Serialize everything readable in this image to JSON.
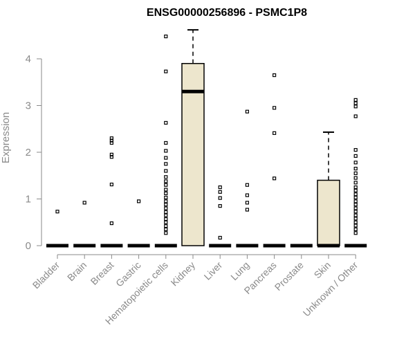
{
  "chart_data": {
    "type": "box",
    "title": "ENSG00000256896 - PSMC1P8",
    "xlabel": "",
    "ylabel": "Expression",
    "ylim": [
      0,
      4.6
    ],
    "yticks": [
      0,
      1,
      2,
      3,
      4
    ],
    "categories": [
      "Bladder",
      "Brain",
      "Breast",
      "Gastric",
      "Hematopoietic cells",
      "Kidney",
      "Liver",
      "Lung",
      "Pancreas",
      "Prostate",
      "Skin",
      "Unknown / Other"
    ],
    "boxes": [
      {
        "q1": 0,
        "median": 0,
        "q3": 0,
        "whisker_low": 0,
        "whisker_high": 0,
        "outliers": [
          0.73
        ]
      },
      {
        "q1": 0,
        "median": 0,
        "q3": 0,
        "whisker_low": 0,
        "whisker_high": 0,
        "outliers": [
          0.92
        ]
      },
      {
        "q1": 0,
        "median": 0,
        "q3": 0,
        "whisker_low": 0,
        "whisker_high": 0,
        "outliers": [
          0.48,
          1.31,
          1.9,
          1.95,
          2.2,
          2.25,
          2.3
        ]
      },
      {
        "q1": 0,
        "median": 0,
        "q3": 0,
        "whisker_low": 0,
        "whisker_high": 0,
        "outliers": [
          0.95
        ]
      },
      {
        "q1": 0,
        "median": 0,
        "q3": 0,
        "whisker_low": 0,
        "whisker_high": 0,
        "outliers": [
          0.27,
          0.35,
          0.42,
          0.5,
          0.57,
          0.65,
          0.72,
          0.8,
          0.88,
          0.95,
          1.03,
          1.12,
          1.2,
          1.3,
          1.38,
          1.47,
          1.6,
          1.75,
          1.88,
          2.03,
          2.2,
          2.63,
          3.73,
          4.48
        ]
      },
      {
        "q1": 0,
        "median": 3.3,
        "q3": 3.9,
        "whisker_low": 0,
        "whisker_high": 4.62,
        "outliers": []
      },
      {
        "q1": 0,
        "median": 0,
        "q3": 0,
        "whisker_low": 0,
        "whisker_high": 0,
        "outliers": [
          0.17,
          0.85,
          1.02,
          1.15,
          1.25
        ]
      },
      {
        "q1": 0,
        "median": 0,
        "q3": 0,
        "whisker_low": 0,
        "whisker_high": 0,
        "outliers": [
          0.77,
          0.92,
          1.08,
          1.3,
          2.87
        ]
      },
      {
        "q1": 0,
        "median": 0,
        "q3": 0,
        "whisker_low": 0,
        "whisker_high": 0,
        "outliers": [
          1.44,
          2.41,
          2.95,
          3.65
        ]
      },
      {
        "q1": 0,
        "median": 0,
        "q3": 0,
        "whisker_low": 0,
        "whisker_high": 0,
        "outliers": []
      },
      {
        "q1": 0,
        "median": 0,
        "q3": 1.4,
        "whisker_low": 0,
        "whisker_high": 2.43,
        "outliers": []
      },
      {
        "q1": 0,
        "median": 0,
        "q3": 0,
        "whisker_low": 0,
        "whisker_high": 0,
        "outliers": [
          0.27,
          0.35,
          0.43,
          0.5,
          0.58,
          0.65,
          0.73,
          0.8,
          0.88,
          0.95,
          1.03,
          1.1,
          1.18,
          1.25,
          1.35,
          1.45,
          1.55,
          1.65,
          1.78,
          1.92,
          2.05,
          2.77,
          2.98,
          3.05,
          3.12
        ]
      }
    ],
    "box_fill": "#ede6cd",
    "axis_color": "#8a8a8a",
    "grid": false,
    "legend": "none"
  }
}
